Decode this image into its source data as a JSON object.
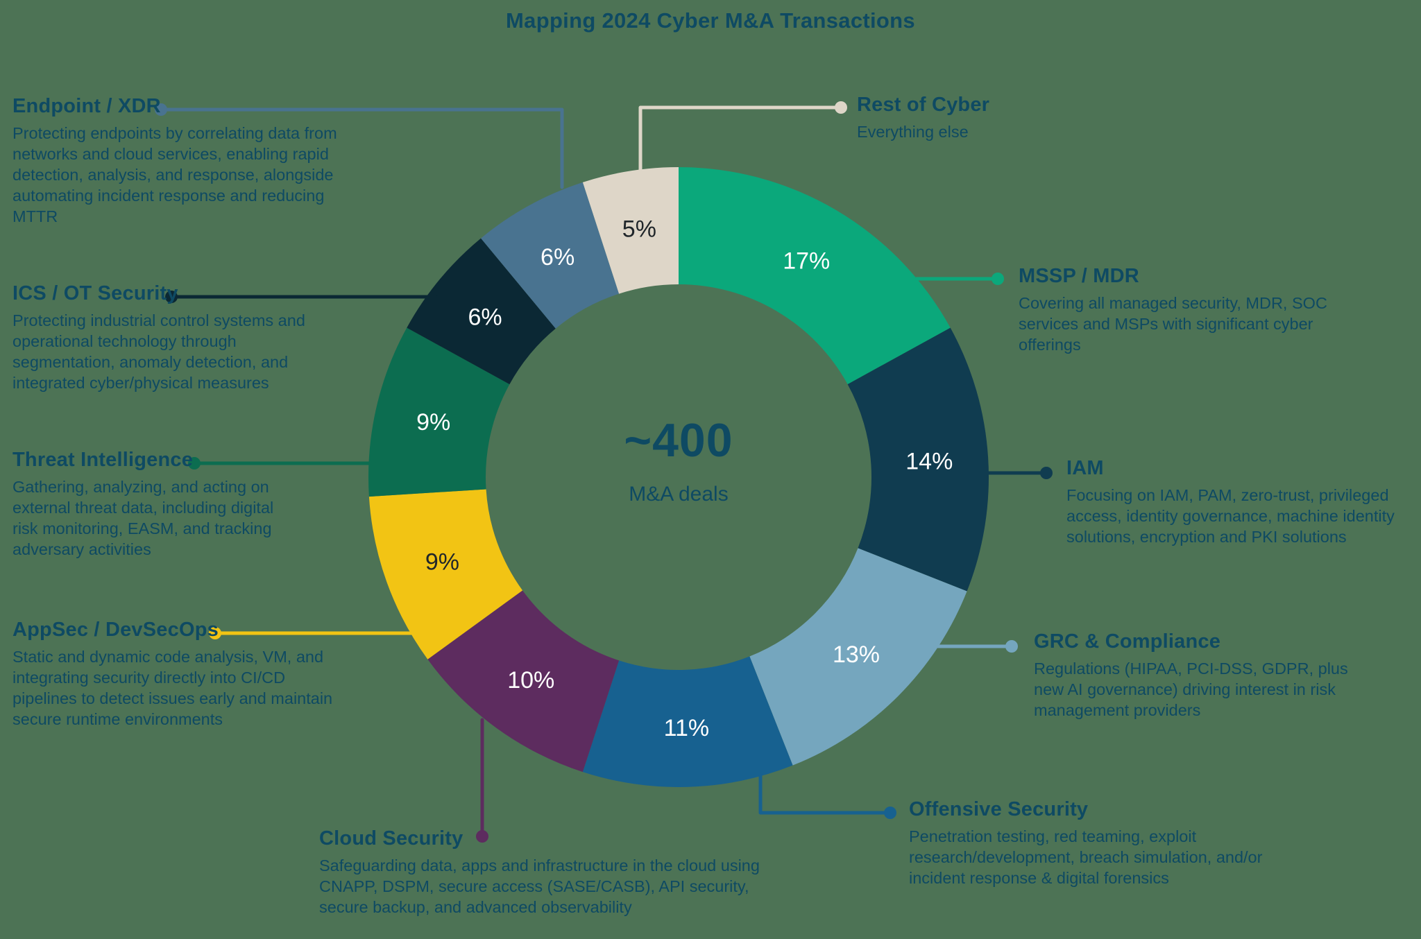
{
  "title": "Mapping 2024 Cyber M&A Transactions",
  "center": {
    "value": "~400",
    "label": "M&A deals"
  },
  "colors": {
    "background": "#4d7355",
    "text": "#0e4a63",
    "percent_light": "#ffffff",
    "percent_dark": "#20262a"
  },
  "chart_data": {
    "type": "pie",
    "subtype": "donut",
    "title": "Mapping 2024 Cyber M&A Transactions",
    "center_value": "~400",
    "center_label": "M&A deals",
    "legend_position": "around-callouts",
    "series": [
      {
        "id": "mssp",
        "label": "MSSP / MDR",
        "value": 17,
        "percent_label": "17%",
        "color": "#0ba87b",
        "description": "Covering all managed security, MDR, SOC services and MSPs with significant cyber offerings"
      },
      {
        "id": "iam",
        "label": "IAM",
        "value": 14,
        "percent_label": "14%",
        "color": "#103c50",
        "description": "Focusing on IAM, PAM, zero-trust, privileged access, identity governance, machine identity solutions, encryption and PKI solutions"
      },
      {
        "id": "grc",
        "label": "GRC & Compliance",
        "value": 13,
        "percent_label": "13%",
        "color": "#75a6be",
        "description": "Regulations (HIPAA, PCI-DSS, GDPR, plus new AI governance) driving interest in risk management providers"
      },
      {
        "id": "offensive",
        "label": "Offensive Security",
        "value": 11,
        "percent_label": "11%",
        "color": "#176190",
        "description": "Penetration testing, red teaming, exploit research/development, breach simulation, and/or incident response & digital forensics"
      },
      {
        "id": "cloud",
        "label": "Cloud Security",
        "value": 10,
        "percent_label": "10%",
        "color": "#5d2c5f",
        "description": "Safeguarding data, apps and infrastructure in the cloud using CNAPP, DSPM, secure access (SASE/CASB), API security, secure backup, and advanced observability"
      },
      {
        "id": "appsec",
        "label": "AppSec / DevSecOps",
        "value": 9,
        "percent_label": "9%",
        "color": "#f2c414",
        "description": "Static and dynamic code analysis, VM, and integrating security directly into CI/CD pipelines to detect issues early and maintain secure runtime environments"
      },
      {
        "id": "threat",
        "label": "Threat Intelligence",
        "value": 9,
        "percent_label": "9%",
        "color": "#0c6d50",
        "description": "Gathering, analyzing, and acting on external threat data, including digital risk monitoring, EASM, and tracking adversary activities"
      },
      {
        "id": "ics",
        "label": "ICS / OT Security",
        "value": 6,
        "percent_label": "6%",
        "color": "#0b2834",
        "description": "Protecting industrial control systems and operational technology through segmentation, anomaly detection, and integrated cyber/physical measures"
      },
      {
        "id": "endpoint",
        "label": "Endpoint / XDR",
        "value": 6,
        "percent_label": "6%",
        "color": "#497390",
        "description": "Protecting endpoints by correlating data from networks and cloud services, enabling rapid detection, analysis, and response, alongside automating incident response and reducing MTTR"
      },
      {
        "id": "rest",
        "label": "Rest of Cyber",
        "value": 5,
        "percent_label": "5%",
        "color": "#ded6c8",
        "description": "Everything else"
      }
    ]
  }
}
